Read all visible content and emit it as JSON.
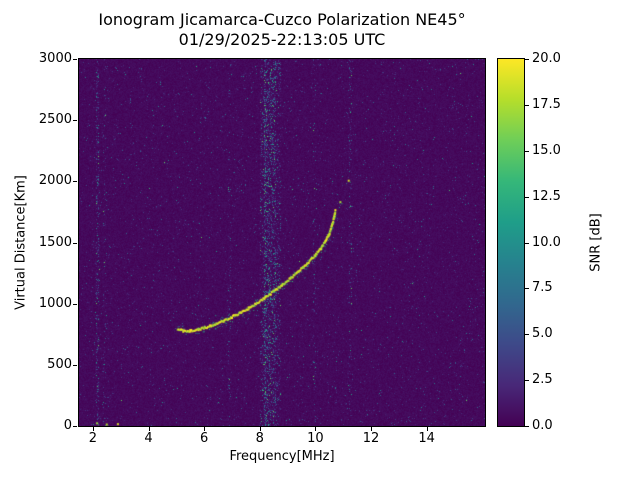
{
  "figure": {
    "kind": "matplotlib-style ionogram plot"
  },
  "chart_data": {
    "type": "heatmap",
    "title": "Ionogram Jicamarca-Cuzco Polarization NE45°",
    "subtitle": "01/29/2025-22:13:05 UTC",
    "xlabel": "Frequency[MHz]",
    "ylabel": "Virtual Distance[Km]",
    "grid": false,
    "x_range": [
      1.5,
      16.1
    ],
    "y_range": [
      0,
      3000
    ],
    "x_ticks": [
      2,
      4,
      6,
      8,
      10,
      12,
      14
    ],
    "x_tick_labels": [
      "2",
      "4",
      "6",
      "8",
      "10",
      "12",
      "14"
    ],
    "y_ticks": [
      0,
      500,
      1000,
      1500,
      2000,
      2500,
      3000
    ],
    "y_tick_labels": [
      "0",
      "500",
      "1000",
      "1500",
      "2000",
      "2500",
      "3000"
    ],
    "colorbar": {
      "label": "SNR [dB]",
      "range": [
        0,
        20
      ],
      "ticks": [
        0,
        2.5,
        5,
        7.5,
        10,
        12.5,
        15,
        17.5,
        20
      ],
      "tick_labels": [
        "0.0",
        "2.5",
        "5.0",
        "7.5",
        "10.0",
        "12.5",
        "15.0",
        "17.5",
        "20.0"
      ]
    },
    "colormap": {
      "name": "viridis",
      "stops": [
        "#440154",
        "#482878",
        "#3e4989",
        "#31688e",
        "#26828e",
        "#1f9e89",
        "#35b779",
        "#6ece58",
        "#b5de2b",
        "#fde725"
      ]
    },
    "background_snr_db": 0,
    "noise": {
      "speckle_probability": 0.042,
      "mean_db": 2.1,
      "texture_max_db": 0.9
    },
    "noise_bands": [
      {
        "freq": 2.15,
        "half_width": 0.06,
        "density": 0.3,
        "mean_db": 3.2
      },
      {
        "freq": 2.4,
        "half_width": 0.05,
        "density": 0.12,
        "mean_db": 2.6
      },
      {
        "freq": 6.9,
        "half_width": 0.05,
        "density": 0.1,
        "mean_db": 2.6
      },
      {
        "freq": 8.1,
        "half_width": 0.1,
        "density": 0.22,
        "mean_db": 3.2
      },
      {
        "freq": 8.35,
        "half_width": 0.22,
        "density": 0.38,
        "mean_db": 4.0
      },
      {
        "freq": 8.65,
        "half_width": 0.08,
        "density": 0.18,
        "mean_db": 3.0
      },
      {
        "freq": 9.95,
        "half_width": 0.05,
        "density": 0.1,
        "mean_db": 2.8
      },
      {
        "freq": 11.25,
        "half_width": 0.05,
        "density": 0.16,
        "mean_db": 3.2
      }
    ],
    "echo_trace": {
      "description": "F-region ionogram echo trace, SNR ~15-20 dB",
      "snr_db_range": [
        15,
        20
      ],
      "points": [
        [
          5.05,
          790
        ],
        [
          5.25,
          776
        ],
        [
          5.5,
          778
        ],
        [
          5.8,
          790
        ],
        [
          6.1,
          808
        ],
        [
          6.4,
          830
        ],
        [
          6.7,
          858
        ],
        [
          7.0,
          890
        ],
        [
          7.3,
          925
        ],
        [
          7.6,
          962
        ],
        [
          7.9,
          1002
        ],
        [
          8.2,
          1048
        ],
        [
          8.5,
          1098
        ],
        [
          8.8,
          1150
        ],
        [
          9.1,
          1205
        ],
        [
          9.4,
          1262
        ],
        [
          9.7,
          1325
        ],
        [
          10.0,
          1395
        ],
        [
          10.2,
          1450
        ],
        [
          10.35,
          1505
        ],
        [
          10.5,
          1570
        ],
        [
          10.6,
          1640
        ],
        [
          10.68,
          1710
        ],
        [
          10.72,
          1760
        ]
      ]
    },
    "isolated_echoes": [
      [
        10.9,
        1830
      ],
      [
        11.2,
        2005
      ],
      [
        2.15,
        22
      ],
      [
        2.5,
        12
      ],
      [
        2.9,
        15
      ]
    ]
  }
}
